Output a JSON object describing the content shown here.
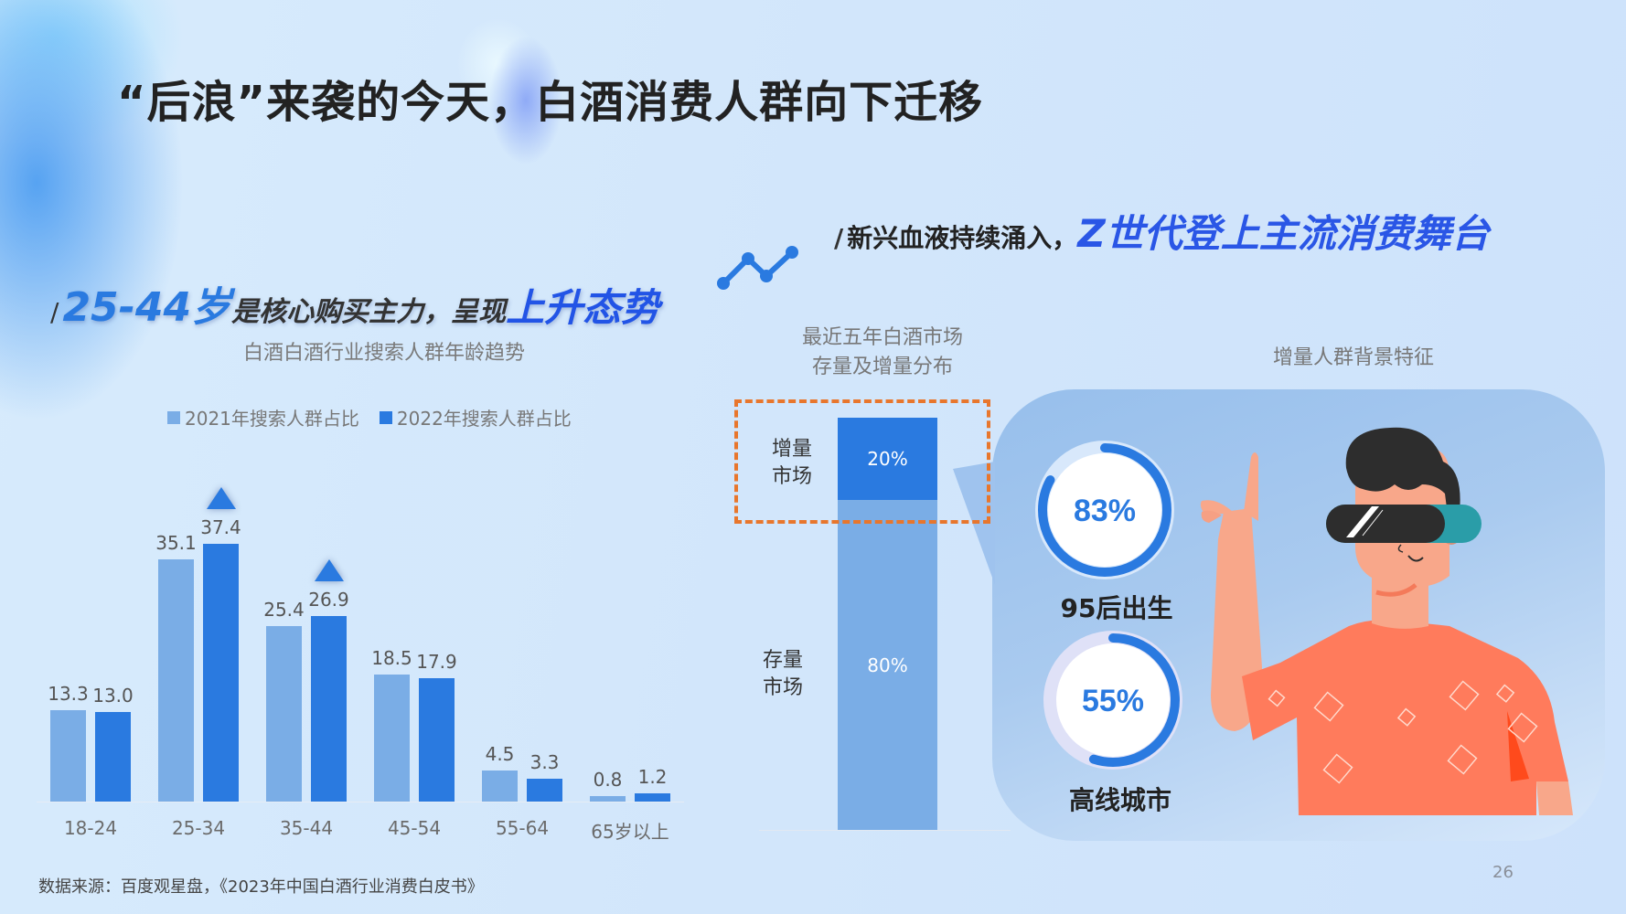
{
  "slide": {
    "title": "“后浪”来袭的今天，白酒消费人群向下迁移",
    "page_number": "26",
    "source": "数据来源：百度观星盘，《2023年中国白酒行业消费白皮书》"
  },
  "left_heading": {
    "slash": "/",
    "highlight1": "25-44岁",
    "middle": "是核心购买主力，呈现",
    "highlight2": "上升态势"
  },
  "right_heading": {
    "slash": "/",
    "middle": "新兴血液持续涌入，",
    "highlight": "Z世代登上主流消费舞台"
  },
  "colors": {
    "series_2021": "#7aade6",
    "series_2022": "#2a7ae0",
    "dashed_box": "#e8762c",
    "shirt": "#ff7b5c",
    "background": "#cfe3fb"
  },
  "icons": {
    "trend": "trend-line-icon",
    "up_marker": "up-triangle-icon"
  },
  "middle_section": {
    "title_line1": "最近五年白酒市场",
    "title_line2": "存量及增量分布",
    "increment_label_1": "增量",
    "increment_label_2": "市场",
    "stock_label_1": "存量",
    "stock_label_2": "市场",
    "increment_value": "20%",
    "stock_value": "80%"
  },
  "right_section": {
    "title": "增量人群背景特征",
    "rings": [
      {
        "value": "83%",
        "percent": 83,
        "label": "95后出生"
      },
      {
        "value": "55%",
        "percent": 55,
        "label": "高线城市"
      }
    ]
  },
  "chart_data": [
    {
      "type": "bar",
      "title": "白酒白酒行业搜索人群年龄趋势",
      "categories": [
        "18-24",
        "25-34",
        "35-44",
        "45-54",
        "55-64",
        "65岁以上"
      ],
      "series": [
        {
          "name": "2021年搜索人群占比",
          "values": [
            13.3,
            35.1,
            25.4,
            18.5,
            4.5,
            0.8
          ]
        },
        {
          "name": "2022年搜索人群占比",
          "values": [
            13.0,
            37.4,
            26.9,
            17.9,
            3.3,
            1.2
          ]
        }
      ],
      "value_labels": {
        "s2021": [
          "13.3",
          "35.1",
          "25.4",
          "18.5",
          "4.5",
          "0.8"
        ],
        "s2022": [
          "13.0",
          "37.4",
          "26.9",
          "17.9",
          "3.3",
          "1.2"
        ]
      },
      "annotations": [
        "up-triangle over 25-34 (2022)",
        "up-triangle over 35-44 (2022)"
      ],
      "xlabel": "",
      "ylabel": "",
      "ylim": [
        0,
        40
      ],
      "grid": false,
      "legend_position": "top"
    },
    {
      "type": "bar",
      "title": "最近五年白酒市场存量及增量分布",
      "categories": [
        "白酒市场"
      ],
      "series": [
        {
          "name": "存量市场",
          "values": [
            80
          ]
        },
        {
          "name": "增量市场",
          "values": [
            20
          ]
        }
      ],
      "stacked": true,
      "ylim": [
        0,
        100
      ]
    },
    {
      "type": "pie",
      "title": "增量人群背景特征",
      "categories": [
        "95后出生",
        "高线城市"
      ],
      "values": [
        83,
        55
      ],
      "style": "donut-progress"
    }
  ]
}
